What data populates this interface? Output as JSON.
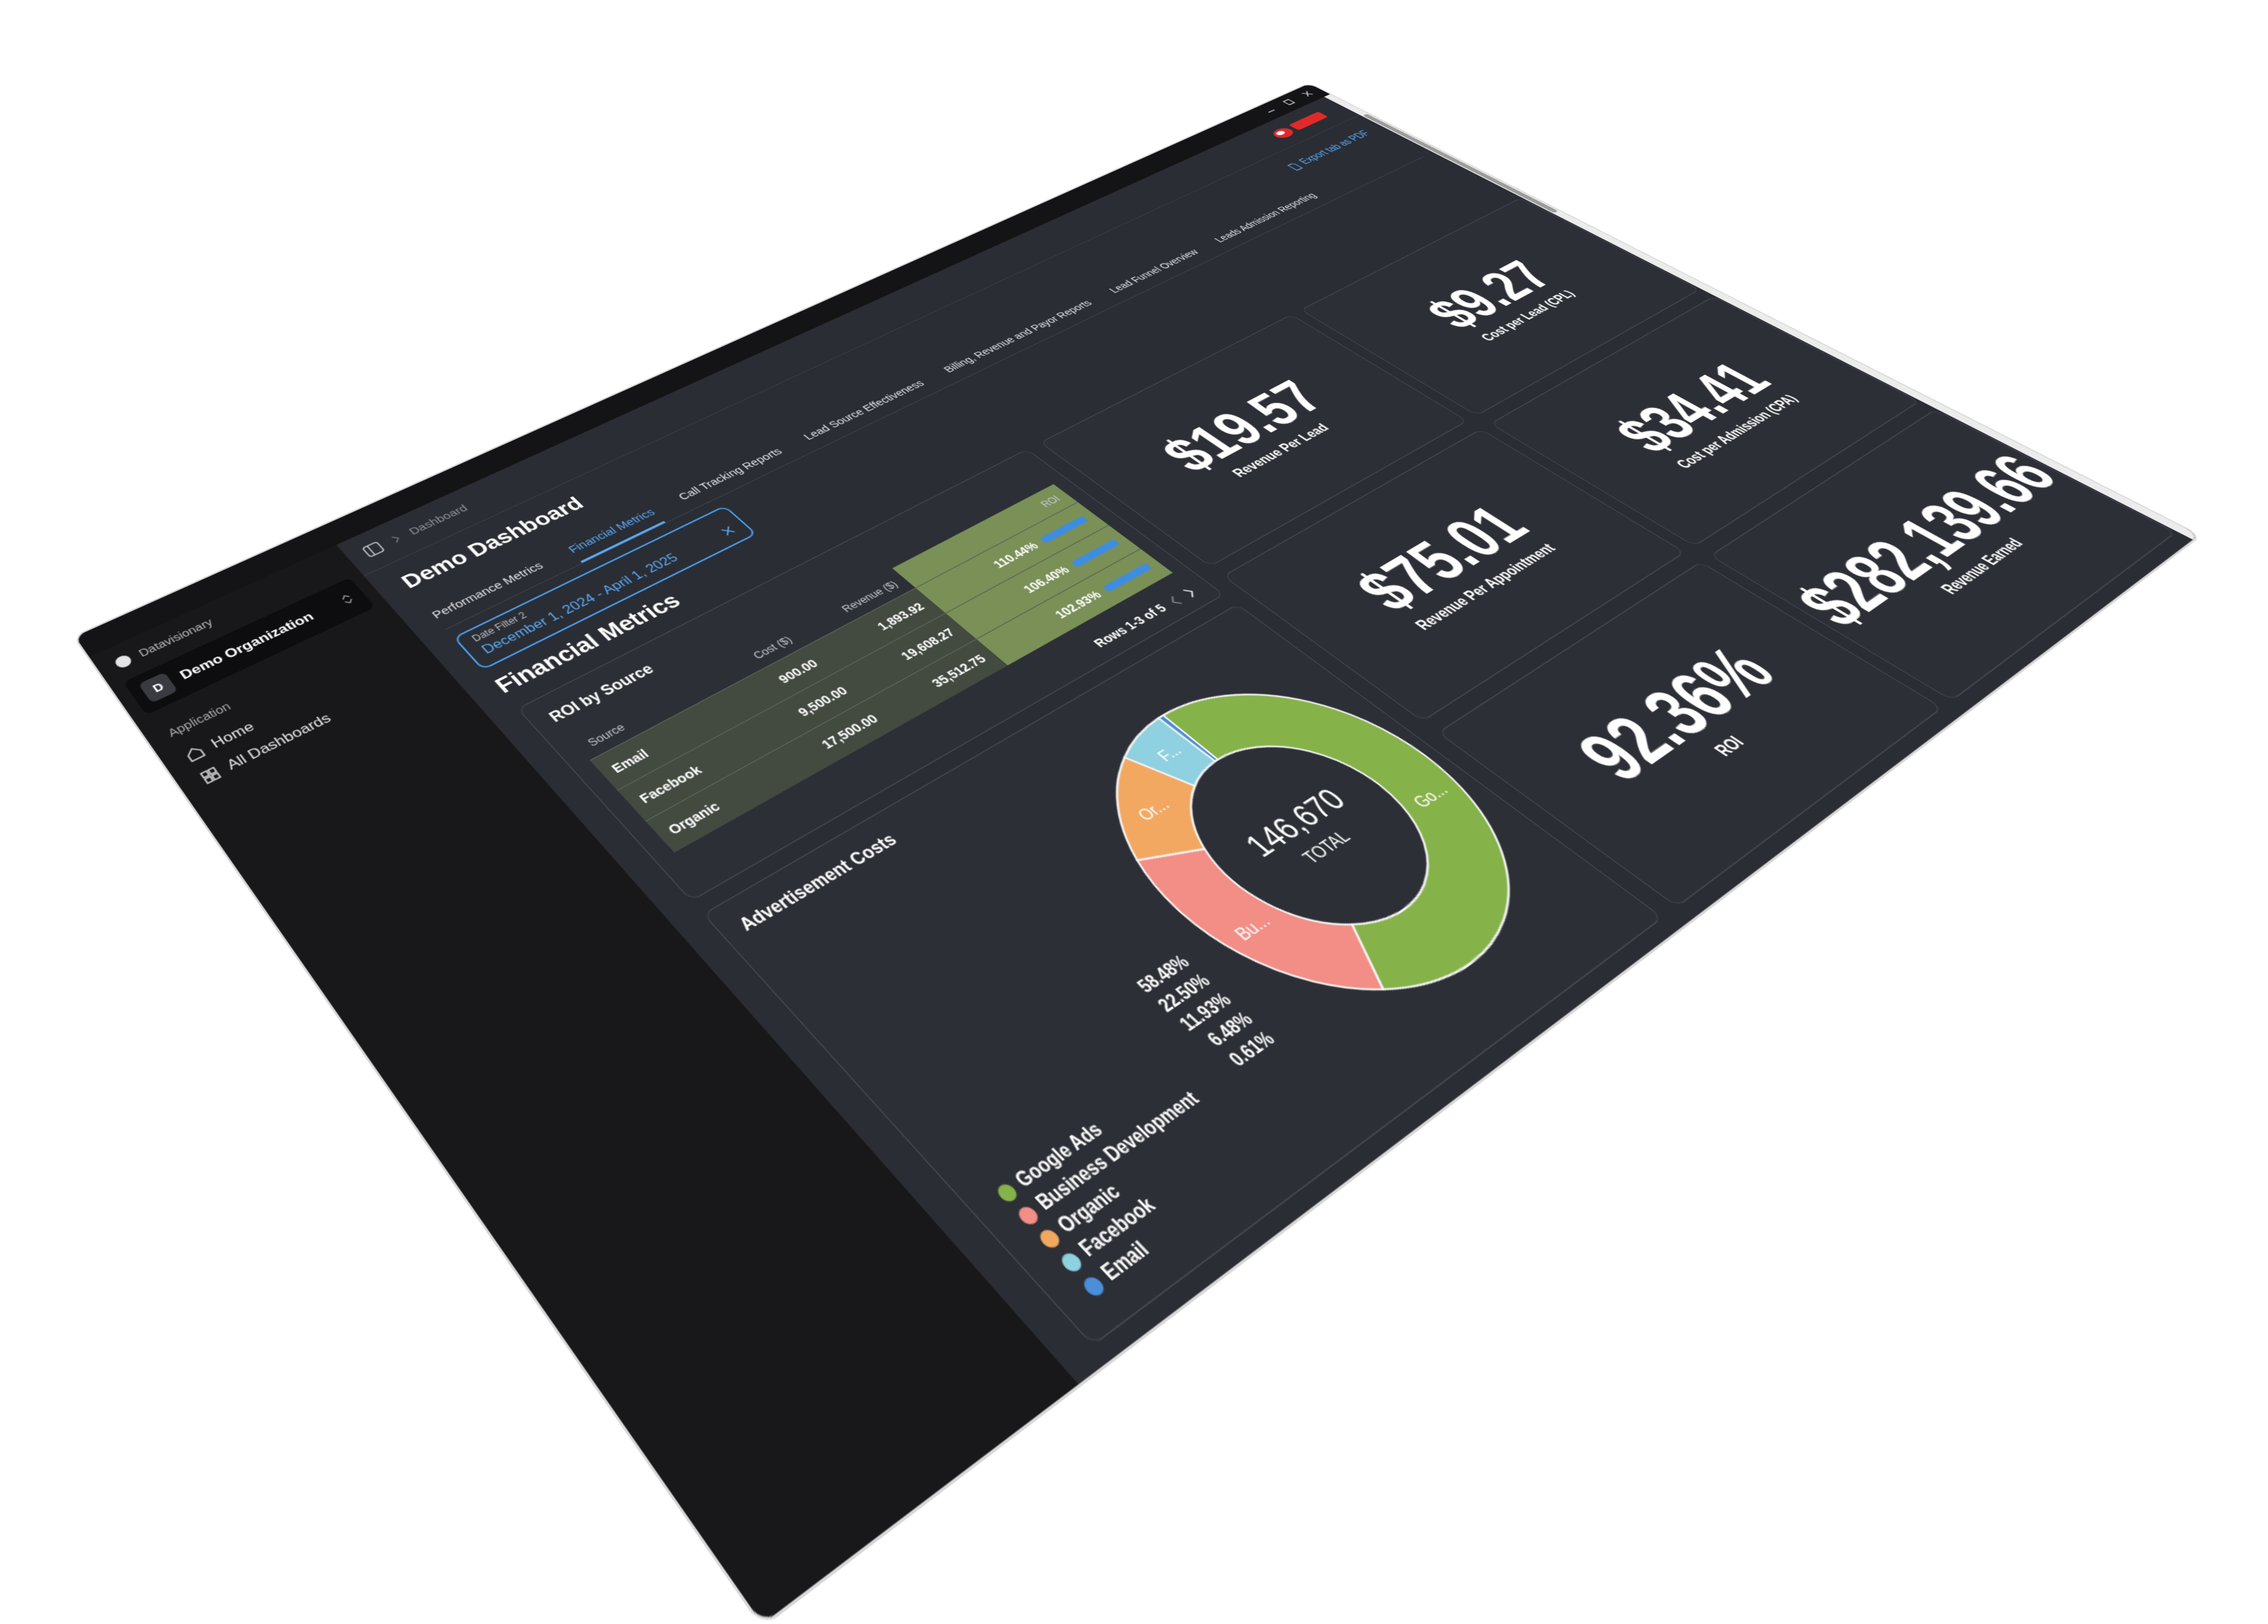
{
  "sidebar": {
    "app_name": "Datavisionary",
    "org_initial": "D",
    "org_name": "Demo Organization",
    "section": "Application",
    "nav": [
      "Home",
      "All Dashboards"
    ]
  },
  "breadcrumb": "Dashboard",
  "header": {
    "title": "Demo Dashboard",
    "export": "Export tab as PDF"
  },
  "tabs": [
    "Performance Metrics",
    "Financial Metrics",
    "Call Tracking Reports",
    "Lead Source Effectiveness",
    "Billing, Revenue and Payor Reports",
    "Lead Funnel Overview",
    "Leads Admission Reporting"
  ],
  "active_tab": 1,
  "date_filter": {
    "label": "Date Filter 2",
    "value": "December 1, 2024 - April 1, 2025"
  },
  "section_title": "Financial Metrics",
  "table": {
    "title": "ROI by Source",
    "columns": [
      "Source",
      "Cost ($)",
      "Revenue ($)",
      "ROI"
    ],
    "rows": [
      [
        "Email",
        "900.00",
        "1,893.92",
        "110.44%"
      ],
      [
        "Facebook",
        "9,500.00",
        "19,608.27",
        "106.40%"
      ],
      [
        "Organic",
        "17,500.00",
        "35,512.75",
        "102.93%"
      ]
    ],
    "pagination": "Rows 1-3 of 5"
  },
  "kpis": [
    {
      "value": "$19.57",
      "label": "Revenue Per Lead"
    },
    {
      "value": "$9.27",
      "label": "Cost per Lead (CPL)"
    },
    {
      "value": "$75.01",
      "label": "Revenue Per Appointment"
    },
    {
      "value": "$34.41",
      "label": "Cost per Admission (CPA)"
    },
    {
      "value": "92.36%",
      "label": "ROI"
    },
    {
      "value": "$282,139.66",
      "label": "Revenue Earned"
    }
  ],
  "chart_data": {
    "type": "pie",
    "title": "Advertisement Costs",
    "total": "146,670",
    "total_caption": "TOTAL",
    "donut": true,
    "categories": [
      "Google Ads",
      "Business Development",
      "Organic",
      "Facebook",
      "Email"
    ],
    "values": [
      58.48,
      22.5,
      11.93,
      6.48,
      0.61
    ],
    "value_labels": [
      "58.48%",
      "22.50%",
      "11.93%",
      "6.48%",
      "0.61%"
    ],
    "slice_labels": [
      "Go...",
      "Bu...",
      "Or...",
      "F...",
      null
    ],
    "colors": [
      "#86b24a",
      "#f28e86",
      "#f3a862",
      "#8fd1e1",
      "#4a8fd8"
    ]
  }
}
